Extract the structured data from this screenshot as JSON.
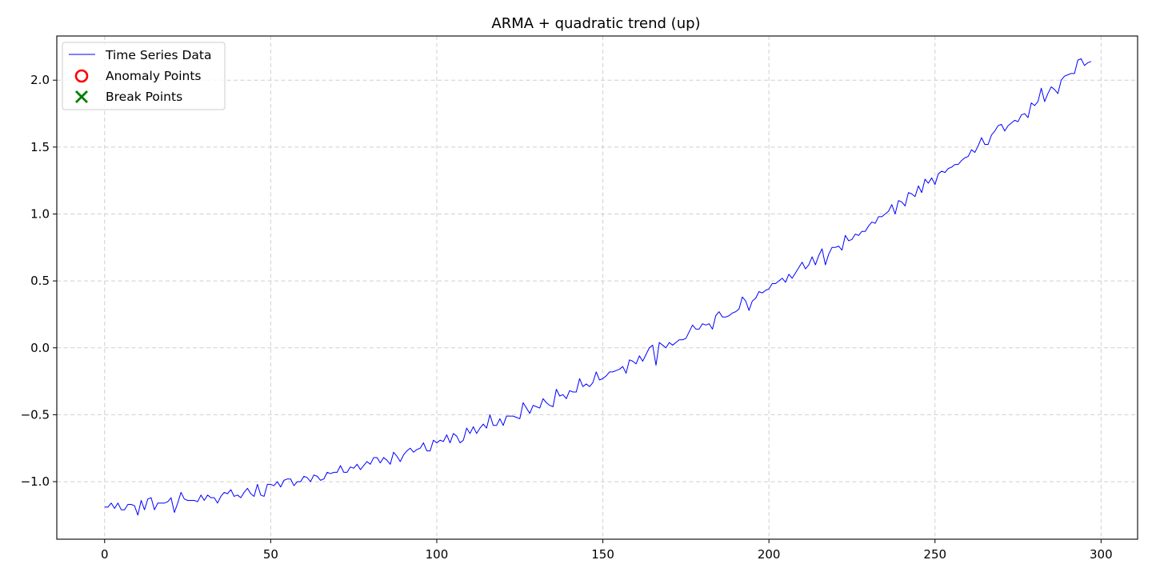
{
  "chart_data": {
    "type": "line",
    "title": "ARMA + quadratic trend (up)",
    "xlabel": "",
    "ylabel": "",
    "xlim": [
      -14.4,
      311.0
    ],
    "ylim": [
      -1.43,
      2.33
    ],
    "grid": true,
    "legend_position": "upper-left",
    "x_ticks": [
      0,
      50,
      100,
      150,
      200,
      250,
      300
    ],
    "x_tick_labels": [
      "0",
      "50",
      "100",
      "150",
      "200",
      "250",
      "300"
    ],
    "y_ticks": [
      -1.0,
      -0.5,
      0.0,
      0.5,
      1.0,
      1.5,
      2.0
    ],
    "y_tick_labels": [
      "−1.0",
      "−0.5",
      "0.0",
      "0.5",
      "1.0",
      "1.5",
      "2.0"
    ],
    "series": [
      {
        "name": "Time Series Data",
        "color": "#0000ff",
        "kind": "line",
        "x_start": 0,
        "x_step": 1,
        "values": [
          -1.19,
          -1.19,
          -1.16,
          -1.2,
          -1.16,
          -1.21,
          -1.21,
          -1.17,
          -1.17,
          -1.18,
          -1.25,
          -1.14,
          -1.21,
          -1.13,
          -1.12,
          -1.21,
          -1.16,
          -1.16,
          -1.16,
          -1.15,
          -1.12,
          -1.23,
          -1.16,
          -1.08,
          -1.13,
          -1.14,
          -1.14,
          -1.14,
          -1.15,
          -1.1,
          -1.14,
          -1.1,
          -1.12,
          -1.12,
          -1.16,
          -1.11,
          -1.08,
          -1.09,
          -1.06,
          -1.11,
          -1.1,
          -1.12,
          -1.08,
          -1.05,
          -1.09,
          -1.11,
          -1.02,
          -1.1,
          -1.11,
          -1.02,
          -1.02,
          -1.03,
          -1.0,
          -1.04,
          -0.99,
          -0.98,
          -0.98,
          -1.03,
          -1.0,
          -1.0,
          -0.96,
          -0.97,
          -1.0,
          -0.95,
          -0.96,
          -0.99,
          -0.98,
          -0.93,
          -0.94,
          -0.93,
          -0.93,
          -0.88,
          -0.93,
          -0.93,
          -0.89,
          -0.9,
          -0.87,
          -0.91,
          -0.88,
          -0.85,
          -0.87,
          -0.82,
          -0.82,
          -0.86,
          -0.82,
          -0.84,
          -0.87,
          -0.78,
          -0.81,
          -0.85,
          -0.8,
          -0.77,
          -0.75,
          -0.78,
          -0.76,
          -0.75,
          -0.71,
          -0.77,
          -0.77,
          -0.69,
          -0.71,
          -0.69,
          -0.7,
          -0.65,
          -0.71,
          -0.64,
          -0.66,
          -0.71,
          -0.69,
          -0.6,
          -0.64,
          -0.59,
          -0.64,
          -0.6,
          -0.57,
          -0.6,
          -0.5,
          -0.58,
          -0.58,
          -0.53,
          -0.58,
          -0.51,
          -0.51,
          -0.51,
          -0.52,
          -0.53,
          -0.41,
          -0.45,
          -0.49,
          -0.43,
          -0.44,
          -0.45,
          -0.38,
          -0.41,
          -0.43,
          -0.44,
          -0.31,
          -0.36,
          -0.35,
          -0.38,
          -0.32,
          -0.33,
          -0.33,
          -0.23,
          -0.29,
          -0.27,
          -0.29,
          -0.26,
          -0.18,
          -0.24,
          -0.23,
          -0.21,
          -0.18,
          -0.18,
          -0.17,
          -0.16,
          -0.14,
          -0.19,
          -0.09,
          -0.1,
          -0.12,
          -0.06,
          -0.1,
          -0.05,
          0.0,
          0.02,
          -0.13,
          0.04,
          0.02,
          0.0,
          0.04,
          0.02,
          0.04,
          0.06,
          0.06,
          0.07,
          0.12,
          0.17,
          0.14,
          0.14,
          0.18,
          0.17,
          0.18,
          0.14,
          0.24,
          0.27,
          0.23,
          0.23,
          0.24,
          0.26,
          0.27,
          0.29,
          0.38,
          0.35,
          0.28,
          0.35,
          0.37,
          0.42,
          0.41,
          0.43,
          0.44,
          0.48,
          0.48,
          0.5,
          0.52,
          0.49,
          0.55,
          0.52,
          0.56,
          0.6,
          0.64,
          0.59,
          0.62,
          0.68,
          0.62,
          0.69,
          0.74,
          0.62,
          0.7,
          0.75,
          0.75,
          0.76,
          0.73,
          0.84,
          0.8,
          0.81,
          0.85,
          0.84,
          0.87,
          0.87,
          0.91,
          0.94,
          0.93,
          0.98,
          0.98,
          1.0,
          1.02,
          1.07,
          1.0,
          1.1,
          1.09,
          1.06,
          1.16,
          1.15,
          1.13,
          1.21,
          1.16,
          1.26,
          1.23,
          1.27,
          1.22,
          1.3,
          1.32,
          1.31,
          1.34,
          1.35,
          1.37,
          1.37,
          1.4,
          1.42,
          1.43,
          1.48,
          1.46,
          1.51,
          1.57,
          1.52,
          1.52,
          1.59,
          1.62,
          1.66,
          1.67,
          1.62,
          1.66,
          1.68,
          1.7,
          1.69,
          1.74,
          1.75,
          1.72,
          1.83,
          1.81,
          1.84,
          1.94,
          1.84,
          1.9,
          1.95,
          1.93,
          1.9,
          2.0,
          2.03,
          2.04,
          2.05,
          2.05,
          2.15,
          2.16,
          2.11,
          2.13,
          2.14
        ]
      },
      {
        "name": "Anomaly Points",
        "color": "#ff0000",
        "kind": "marker-circle",
        "x": [],
        "values": []
      },
      {
        "name": "Break Points",
        "color": "#008000",
        "kind": "marker-x",
        "x": [],
        "values": []
      }
    ]
  },
  "colors": {
    "axis": "#000000",
    "grid": "#cfcfcf",
    "background": "#ffffff",
    "legend_border": "#cccccc"
  }
}
